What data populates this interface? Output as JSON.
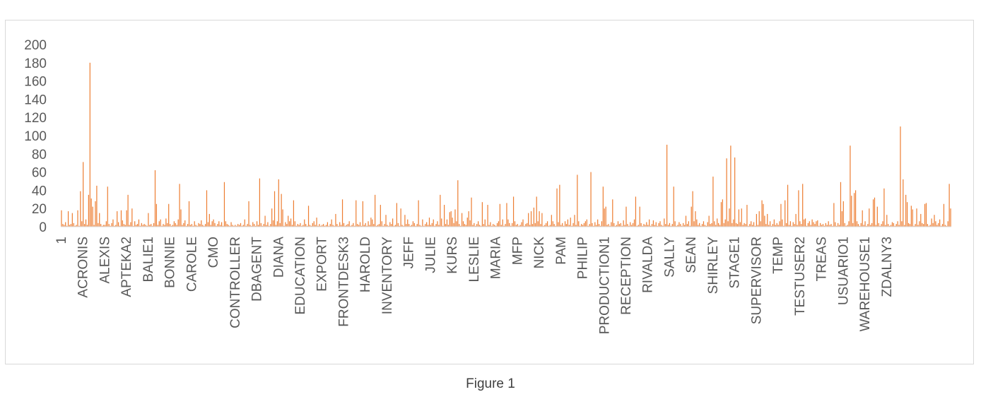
{
  "caption": "Figure 1",
  "colors": {
    "series": "#ed7d31",
    "axis_text": "#595959",
    "frame": "#d9d9d9"
  },
  "chart_data": {
    "type": "bar",
    "title": "",
    "xlabel": "",
    "ylabel": "",
    "ylim": [
      0,
      200
    ],
    "yticks": [
      0,
      20,
      40,
      60,
      80,
      100,
      120,
      140,
      160,
      180,
      200
    ],
    "grid": false,
    "legend": "none",
    "x_tick_labels": [
      "1",
      "ACRONIS",
      "ALEXIS",
      "APTEKA2",
      "BALIE1",
      "BONNIE",
      "CAROLE",
      "CMO",
      "CONTROLLER",
      "DBAGENT",
      "DIANA",
      "EDUCATION",
      "EXPORT",
      "FRONTDESK3",
      "HAROLD",
      "INVENTORY",
      "JEFF",
      "JULIE",
      "KURS",
      "LESLIE",
      "MARIA",
      "MFP",
      "NICK",
      "PAM",
      "PHILIP",
      "PRODUCTION1",
      "RECEPTION",
      "RIVALDA",
      "SALLY",
      "SEAN",
      "SHIRLEY",
      "STAGE1",
      "SUPERVISOR",
      "TEMP",
      "TESTUSER2",
      "TREAS",
      "USUARIO1",
      "WAREHOUSE1",
      "ZDALNY3"
    ],
    "bars_per_label": 16,
    "series": [
      {
        "values": [
          18,
          3,
          2,
          5,
          1,
          17,
          2,
          3,
          15,
          4,
          1,
          2,
          18,
          1,
          39,
          6,
          71,
          3,
          8,
          2,
          35,
          180,
          31,
          22,
          2,
          28,
          45,
          4,
          15,
          3,
          1,
          2,
          2,
          6,
          44,
          3,
          1,
          4,
          8,
          1,
          2,
          17,
          5,
          1,
          18,
          7,
          3,
          2,
          18,
          35,
          2,
          5,
          20,
          1,
          6,
          2,
          3,
          8,
          1,
          4,
          2,
          3,
          2,
          1,
          15,
          2,
          3,
          1,
          4,
          62,
          25,
          2,
          6,
          8,
          1,
          3,
          2,
          9,
          4,
          25,
          3,
          1,
          2,
          6,
          4,
          2,
          8,
          47,
          19,
          2,
          4,
          7,
          1,
          3,
          28,
          2,
          3,
          1,
          6,
          2,
          1,
          4,
          3,
          7,
          2,
          1,
          3,
          40,
          5,
          14,
          2,
          6,
          8,
          4,
          1,
          3,
          6,
          2,
          5,
          1,
          49,
          6,
          3,
          2,
          1,
          5,
          2,
          1,
          2,
          1,
          3,
          2,
          4,
          1,
          2,
          8,
          1,
          3,
          28,
          2,
          1,
          5,
          3,
          1,
          6,
          2,
          53,
          4,
          1,
          3,
          12,
          2,
          5,
          1,
          3,
          20,
          7,
          39,
          2,
          6,
          52,
          4,
          36,
          19,
          1,
          5,
          3,
          12,
          6,
          9,
          2,
          29,
          6,
          1,
          3,
          2,
          4,
          1,
          2,
          8,
          3,
          1,
          23,
          2,
          1,
          4,
          6,
          2,
          10,
          1,
          3,
          1,
          2,
          3,
          1,
          2,
          5,
          1,
          3,
          8,
          2,
          1,
          14,
          3,
          1,
          5,
          2,
          30,
          4,
          1,
          2,
          3,
          6,
          1,
          2,
          4,
          1,
          29,
          3,
          2,
          5,
          1,
          28,
          2,
          4,
          1,
          6,
          2,
          10,
          8,
          3,
          35,
          1,
          2,
          3,
          24,
          6,
          1,
          3,
          13,
          2,
          1,
          5,
          3,
          9,
          1,
          2,
          26,
          4,
          1,
          20,
          2,
          1,
          13,
          3,
          8,
          3,
          1,
          2,
          6,
          4,
          1,
          3,
          29,
          2,
          1,
          8,
          1,
          3,
          5,
          2,
          10,
          2,
          4,
          8,
          1,
          3,
          6,
          2,
          35,
          9,
          1,
          24,
          3,
          8,
          2,
          16,
          17,
          10,
          4,
          19,
          6,
          51,
          3,
          1,
          15,
          6,
          3,
          2,
          10,
          17,
          7,
          32,
          2,
          4,
          1,
          3,
          6,
          2,
          1,
          27,
          3,
          8,
          1,
          24,
          2,
          5,
          1,
          3,
          2,
          1,
          4,
          6,
          25,
          2,
          8,
          1,
          3,
          26,
          8,
          4,
          1,
          4,
          33,
          6,
          2,
          3,
          1,
          2,
          5,
          8,
          1,
          3,
          4,
          15,
          2,
          17,
          3,
          21,
          4,
          33,
          6,
          17,
          3,
          15,
          1,
          2,
          4,
          6,
          1,
          2,
          13,
          6,
          3,
          1,
          42,
          5,
          46,
          2,
          4,
          1,
          6,
          3,
          8,
          2,
          10,
          1,
          4,
          13,
          2,
          57,
          6,
          1,
          3,
          2,
          4,
          6,
          8,
          1,
          3,
          60,
          4,
          1,
          5,
          2,
          8,
          3,
          1,
          6,
          44,
          20,
          22,
          2,
          3,
          1,
          5,
          30,
          4,
          1,
          2,
          6,
          3,
          4,
          1,
          7,
          2,
          22,
          3,
          1,
          5,
          2,
          4,
          8,
          33,
          1,
          2,
          22,
          4,
          1,
          3,
          2,
          5,
          2,
          8,
          1,
          3,
          7,
          2,
          5,
          1,
          4,
          6,
          2,
          1,
          9,
          3,
          90,
          2,
          4,
          1,
          3,
          44,
          6,
          1,
          2,
          5,
          3,
          1,
          4,
          2,
          12,
          3,
          6,
          1,
          22,
          39,
          6,
          17,
          8,
          2,
          4,
          1,
          3,
          6,
          2,
          1,
          5,
          12,
          3,
          4,
          55,
          6,
          2,
          9,
          4,
          2,
          27,
          30,
          4,
          8,
          75,
          6,
          20,
          89,
          4,
          8,
          76,
          4,
          3,
          19,
          5,
          20,
          2,
          4,
          3,
          24,
          1,
          3,
          6,
          2,
          5,
          1,
          14,
          2,
          17,
          6,
          29,
          25,
          12,
          3,
          14,
          2,
          6,
          1,
          3,
          8,
          2,
          4,
          2,
          6,
          25,
          8,
          1,
          29,
          4,
          46,
          2,
          6,
          1,
          5,
          3,
          14,
          2,
          40,
          6,
          3,
          47,
          8,
          9,
          1,
          4,
          6,
          2,
          8,
          5,
          3,
          6,
          7,
          1,
          4,
          2,
          3,
          1,
          4,
          2,
          6,
          2,
          3,
          1,
          26,
          5,
          1,
          4,
          2,
          49,
          17,
          28,
          4,
          1,
          2,
          6,
          89,
          34,
          4,
          37,
          40,
          6,
          3,
          1,
          4,
          18,
          2,
          6,
          1,
          3,
          20,
          2,
          4,
          30,
          32,
          2,
          22,
          4,
          1,
          3,
          6,
          42,
          2,
          13,
          3,
          1,
          2,
          5,
          4,
          1,
          3,
          6,
          2,
          110,
          6,
          52,
          2,
          35,
          27,
          4,
          3,
          23,
          19,
          1,
          3,
          20,
          2,
          6,
          14,
          4,
          3,
          25,
          26,
          3,
          1,
          2,
          9,
          4,
          13,
          6,
          2,
          4,
          8,
          1,
          3,
          25,
          2,
          1,
          6,
          47,
          20
        ]
      }
    ]
  }
}
